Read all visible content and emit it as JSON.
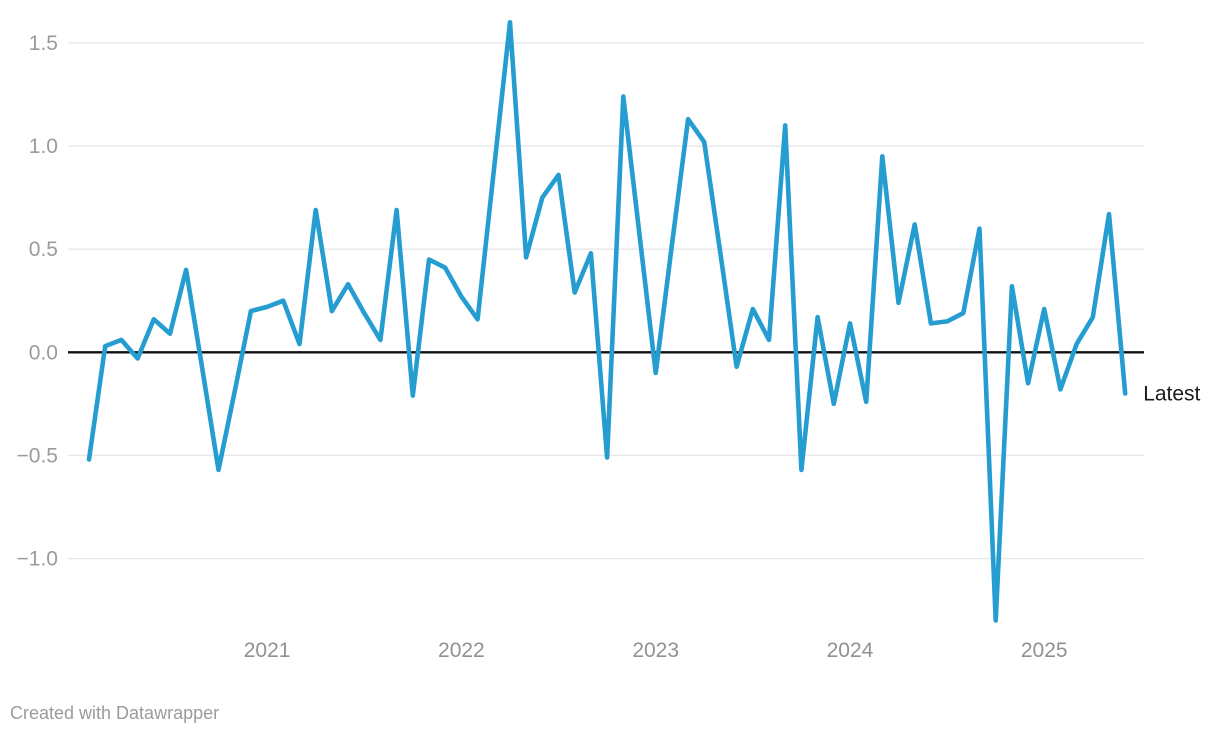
{
  "footer": {
    "text": "Created with Datawrapper"
  },
  "colors": {
    "line": "#259dd0",
    "zero_axis": "#101010",
    "gridline": "#e7e7e7",
    "axis_text": "#9b9b9b",
    "annotation_text": "#1a1a1a"
  },
  "chart_data": {
    "type": "line",
    "title": "",
    "xlabel": "",
    "ylabel": "",
    "grid": true,
    "legend": false,
    "ylim": [
      -1.45,
      1.65
    ],
    "y_axis": {
      "ticks": [
        {
          "value": 1.5,
          "label": "1.5"
        },
        {
          "value": 1.0,
          "label": "1.0"
        },
        {
          "value": 0.5,
          "label": "0.5"
        },
        {
          "value": 0.0,
          "label": "0.0"
        },
        {
          "value": -0.5,
          "label": "−0.5"
        },
        {
          "value": -1.0,
          "label": "−1.0"
        }
      ]
    },
    "x_axis": {
      "ticks": [
        {
          "label": "2021",
          "index": 11
        },
        {
          "label": "2022",
          "index": 23
        },
        {
          "label": "2023",
          "index": 35
        },
        {
          "label": "2024",
          "index": 47
        },
        {
          "label": "2025",
          "index": 59
        }
      ]
    },
    "annotation": {
      "text": "Latest"
    },
    "series": [
      {
        "name": "value",
        "x": [
          "2020-02",
          "2020-03",
          "2020-04",
          "2020-05",
          "2020-06",
          "2020-07",
          "2020-08",
          "2020-09",
          "2020-10",
          "2020-11",
          "2020-12",
          "2021-01",
          "2021-02",
          "2021-03",
          "2021-04",
          "2021-05",
          "2021-06",
          "2021-07",
          "2021-08",
          "2021-09",
          "2021-10",
          "2021-11",
          "2021-12",
          "2022-01",
          "2022-02",
          "2022-03",
          "2022-04",
          "2022-05",
          "2022-06",
          "2022-07",
          "2022-08",
          "2022-09",
          "2022-10",
          "2022-11",
          "2022-12",
          "2023-01",
          "2023-02",
          "2023-03",
          "2023-04",
          "2023-05",
          "2023-06",
          "2023-07",
          "2023-08",
          "2023-09",
          "2023-10",
          "2023-11",
          "2023-12",
          "2024-01",
          "2024-02",
          "2024-03",
          "2024-04",
          "2024-05",
          "2024-06",
          "2024-07",
          "2024-08",
          "2024-09",
          "2024-10",
          "2024-11",
          "2024-12",
          "2025-01",
          "2025-02",
          "2025-03",
          "2025-04",
          "2025-05",
          "2025-06"
        ],
        "values": [
          -0.52,
          0.03,
          0.06,
          -0.03,
          0.16,
          0.09,
          0.4,
          -0.08,
          -0.57,
          -0.19,
          0.2,
          0.22,
          0.25,
          0.04,
          0.69,
          0.2,
          0.33,
          0.19,
          0.06,
          0.69,
          -0.21,
          0.45,
          0.41,
          0.27,
          0.16,
          0.88,
          1.6,
          0.46,
          0.75,
          0.86,
          0.29,
          0.48,
          -0.51,
          1.24,
          0.57,
          -0.1,
          0.52,
          1.13,
          1.02,
          0.48,
          -0.07,
          0.21,
          0.06,
          1.1,
          -0.57,
          0.17,
          -0.25,
          0.14,
          -0.24,
          0.95,
          0.24,
          0.62,
          0.14,
          0.15,
          0.19,
          0.6,
          -1.3,
          0.32,
          -0.15,
          0.21,
          -0.18,
          0.04,
          0.17,
          0.67,
          -0.2
        ]
      }
    ]
  }
}
